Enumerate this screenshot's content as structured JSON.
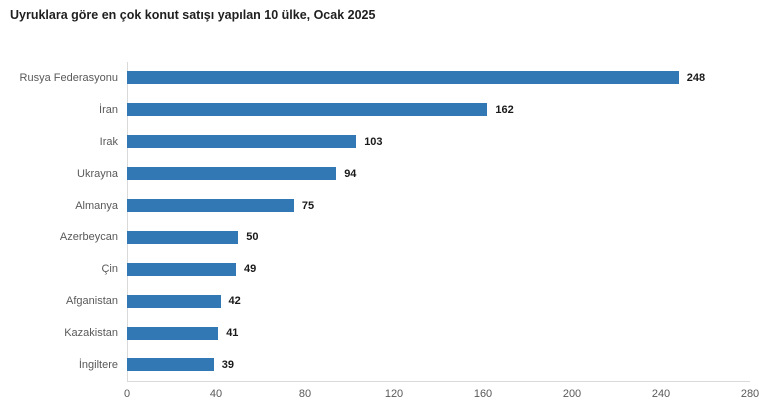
{
  "chart_data": {
    "type": "bar",
    "orientation": "horizontal",
    "title": "Uyruklara göre en çok konut satışı yapılan 10 ülke, Ocak 2025",
    "categories": [
      "Rusya Federasyonu",
      "İran",
      "Irak",
      "Ukrayna",
      "Almanya",
      "Azerbeycan",
      "Çin",
      "Afganistan",
      "Kazakistan",
      "İngiltere"
    ],
    "values": [
      248,
      162,
      103,
      94,
      75,
      50,
      49,
      42,
      41,
      39
    ],
    "xlabel": "",
    "ylabel": "",
    "xlim": [
      0,
      280
    ],
    "xticks": [
      0,
      40,
      80,
      120,
      160,
      200,
      240,
      280
    ],
    "grid": false,
    "legend": "none",
    "value_labels": "end-of-bar",
    "colors": {
      "bar": "#3278b5",
      "axis_line": "#d9d9d9",
      "category_label": "#595959",
      "tick_label": "#595959",
      "value_label": "#1a1a1a",
      "title": "#1f1f1f",
      "background": "#ffffff"
    }
  }
}
